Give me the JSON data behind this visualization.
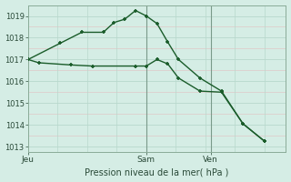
{
  "title": "",
  "xlabel": "Pression niveau de la mer( hPa )",
  "background_color": "#d5ede5",
  "grid_major_color": "#b8d8cc",
  "grid_minor_color": "#e0c8c8",
  "line_color": "#1a5c2a",
  "border_color": "#8aab98",
  "ylim": [
    1012.75,
    1019.5
  ],
  "xlim": [
    0,
    12
  ],
  "line1_x": [
    0,
    0.5,
    2,
    3,
    5,
    5.5,
    6,
    6.5,
    7,
    8,
    9,
    10,
    11
  ],
  "line1_y": [
    1017.0,
    1016.85,
    1016.75,
    1016.7,
    1016.7,
    1016.7,
    1017.0,
    1016.8,
    1016.15,
    1015.55,
    1015.5,
    1014.05,
    1013.25
  ],
  "line2_x": [
    0,
    1.5,
    2.5,
    3.5,
    4,
    4.5,
    5,
    5.5,
    6,
    6.5,
    7,
    8,
    9,
    10,
    11
  ],
  "line2_y": [
    1017.0,
    1017.75,
    1018.25,
    1018.25,
    1018.7,
    1018.85,
    1019.25,
    1019.0,
    1018.65,
    1017.8,
    1017.0,
    1016.15,
    1015.55,
    1014.05,
    1013.25
  ],
  "xtick_positions": [
    0,
    5.5,
    8.5
  ],
  "xtick_labels": [
    "Jeu",
    "Sam",
    "Ven"
  ],
  "ytick_positions": [
    1013,
    1014,
    1015,
    1016,
    1017,
    1018,
    1019
  ],
  "minor_grid_y": [
    1013.5,
    1014.5,
    1015.5,
    1016.5,
    1017.5,
    1018.5
  ],
  "vline_positions": [
    5.5,
    8.5
  ],
  "vertical_grid_x": [
    0,
    1.375,
    2.75,
    4.125,
    5.5,
    6.875,
    8.25,
    9.625,
    11
  ]
}
